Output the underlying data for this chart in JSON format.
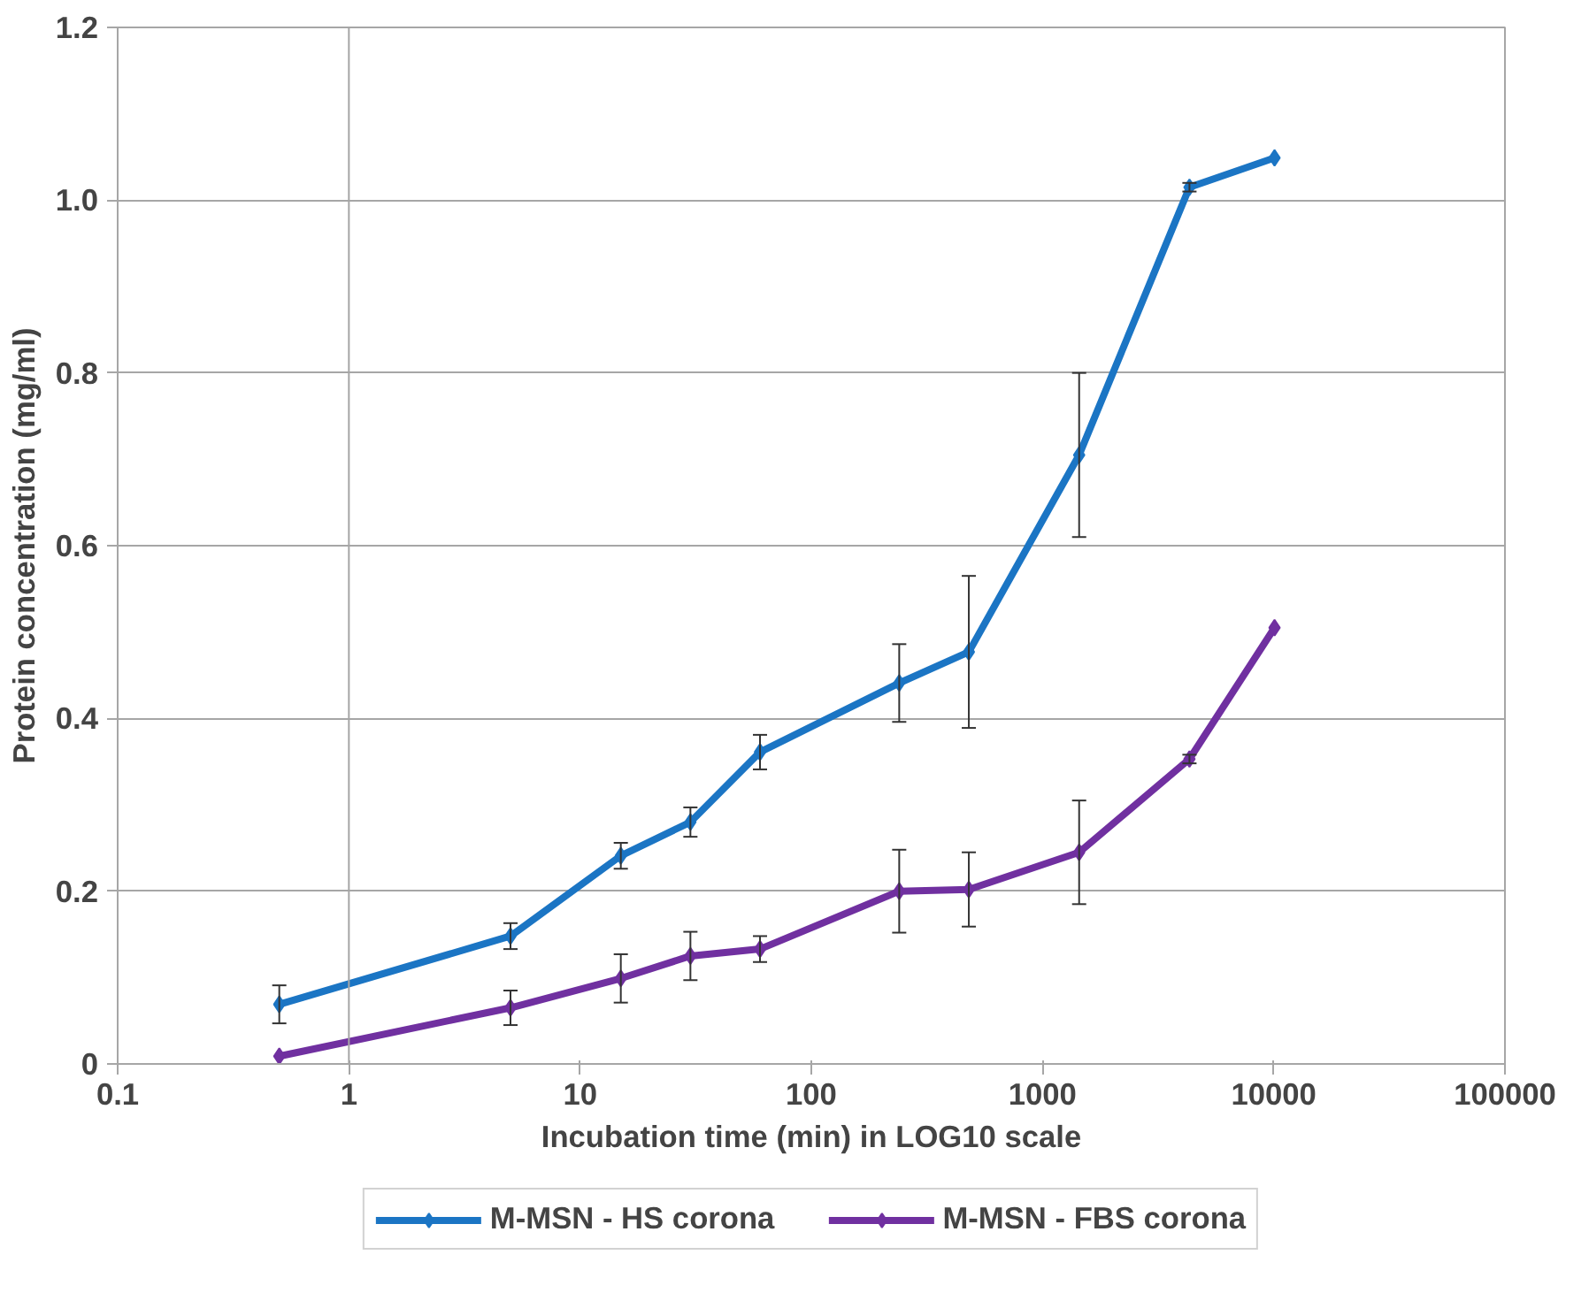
{
  "chart_data": {
    "type": "line",
    "xlabel": "Incubation time (min) in LOG10 scale",
    "ylabel": "Protein concentration (mg/ml)",
    "x": [
      0.5,
      5,
      15,
      30,
      60,
      240,
      480,
      1440,
      4320,
      10080
    ],
    "series": [
      {
        "name": "M-MSN - HS corona",
        "color": "#1b75c4",
        "values": [
          0.069,
          0.148,
          0.241,
          0.28,
          0.361,
          0.441,
          0.477,
          0.705,
          1.015,
          1.049
        ],
        "errors": [
          0.022,
          0.015,
          0.015,
          0.017,
          0.02,
          0.045,
          0.088,
          0.095,
          0.005,
          null
        ]
      },
      {
        "name": "M-MSN - FBS corona",
        "color": "#7030a0",
        "values": [
          0.009,
          0.065,
          0.099,
          0.125,
          0.133,
          0.2,
          0.202,
          0.245,
          0.353,
          0.505
        ],
        "errors": [
          null,
          0.02,
          0.028,
          0.028,
          0.015,
          0.048,
          0.043,
          0.06,
          0.005,
          null
        ]
      }
    ],
    "log": "x",
    "xlim": [
      0.1,
      100000
    ],
    "xticks": [
      0.1,
      1,
      10,
      100,
      1000,
      10000,
      100000
    ],
    "ylim": [
      0,
      1.2
    ],
    "yticks": [
      {
        "value": 0,
        "label": "0"
      },
      0.2,
      0.4,
      0.6,
      0.8,
      {
        "value": 1,
        "label": "1.0"
      },
      1.2
    ],
    "ref_lines": [
      {
        "axis": "x",
        "value": 1,
        "label": null,
        "color": "#a6a6a6"
      }
    ],
    "grid": "y",
    "legend": "bottom",
    "marker": "diamond",
    "line_style": "solid"
  }
}
